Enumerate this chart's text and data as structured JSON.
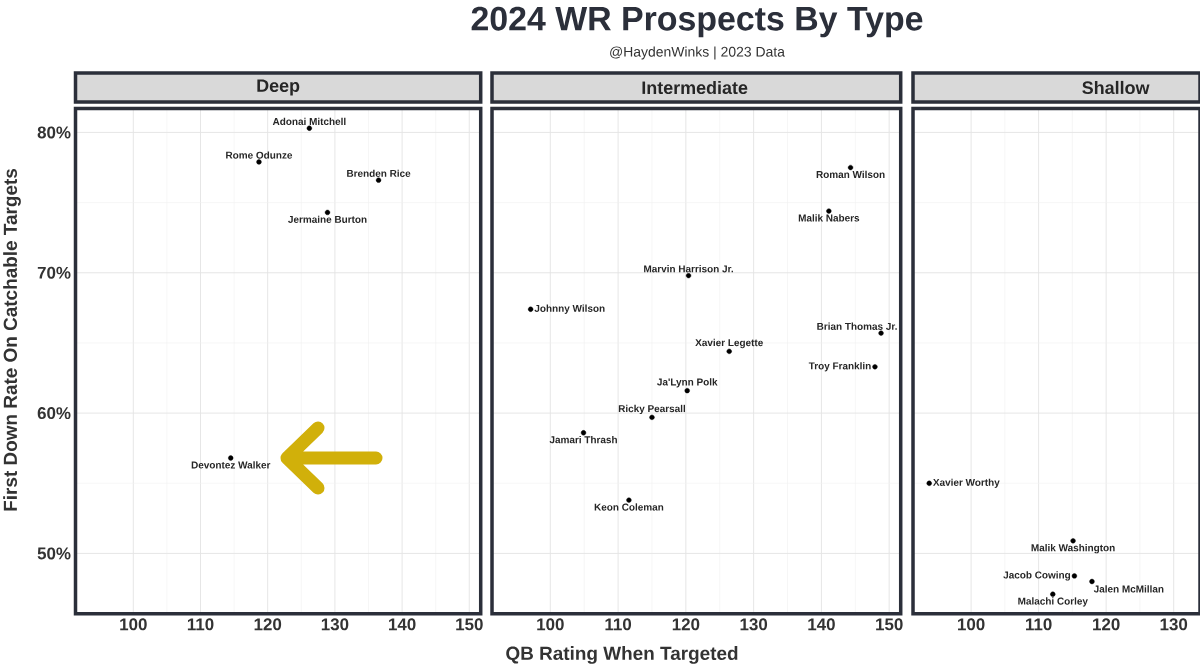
{
  "chart_data": [
    {
      "type": "scatter",
      "title": "Deep",
      "ylabel": "First Down Rate On Catchable Targets",
      "color": "#000000",
      "marker": "circle",
      "grid": true,
      "x": [
        126.2,
        118.7,
        136.5,
        128.9,
        114.5
      ],
      "values": [
        80.3,
        77.9,
        76.6,
        74.3,
        56.8
      ],
      "xlim": [
        91.4,
        151.7
      ],
      "ylim": [
        45.7,
        81.7
      ],
      "xticks": [
        100,
        110,
        120,
        130,
        140,
        150
      ],
      "yticks": [
        {
          "value": 50,
          "label": "50%"
        },
        {
          "value": 60,
          "label": "60%"
        },
        {
          "value": 70,
          "label": "70%"
        },
        {
          "value": 80,
          "label": "80%"
        }
      ],
      "annotations": [
        {
          "text": "Adonai Mitchell",
          "x": 126.2,
          "y": 80.3
        },
        {
          "text": "Rome Odunze",
          "x": 118.7,
          "y": 77.9
        },
        {
          "text": "Brenden Rice",
          "x": 136.5,
          "y": 76.6
        },
        {
          "text": "Jermaine Burton",
          "x": 128.9,
          "y": 74.3
        },
        {
          "text": "Devontez Walker",
          "x": 114.5,
          "y": 56.8
        },
        "2024 WR Prospects By Type",
        "@HaydenWinks | 2023 Data"
      ]
    },
    {
      "type": "scatter",
      "title": "Intermediate",
      "xlabel": "QB Rating When Targeted",
      "color": "#000000",
      "marker": "circle",
      "grid": true,
      "tick_labels": "x",
      "x": [
        144.3,
        141.1,
        120.4,
        97.1,
        148.8,
        126.4,
        147.9,
        120.2,
        115.0,
        104.9,
        111.6
      ],
      "values": [
        77.5,
        74.4,
        69.8,
        67.4,
        65.7,
        64.4,
        63.3,
        61.6,
        59.7,
        58.6,
        53.8
      ],
      "xlim": [
        91.4,
        151.7
      ],
      "ylim": [
        45.7,
        81.7
      ],
      "xticks": [
        100,
        110,
        120,
        130,
        140,
        150
      ],
      "yticks": [
        50,
        60,
        70,
        80
      ],
      "annotations": [
        {
          "text": "Roman Wilson",
          "x": 144.3,
          "y": 77.5
        },
        {
          "text": "Malik Nabers",
          "x": 141.1,
          "y": 74.4
        },
        {
          "text": "Marvin Harrison Jr.",
          "x": 120.4,
          "y": 69.8
        },
        {
          "text": "Johnny Wilson",
          "x": 97.1,
          "y": 67.4
        },
        {
          "text": "Brian Thomas Jr.",
          "x": 148.8,
          "y": 65.7
        },
        {
          "text": "Xavier Legette",
          "x": 126.4,
          "y": 64.4
        },
        {
          "text": "Troy Franklin",
          "x": 147.9,
          "y": 63.3
        },
        {
          "text": "Ja'Lynn Polk",
          "x": 120.2,
          "y": 61.6
        },
        {
          "text": "Ricky Pearsall",
          "x": 115.0,
          "y": 59.7
        },
        {
          "text": "Jamari Thrash",
          "x": 104.9,
          "y": 58.6
        },
        {
          "text": "Keon Coleman",
          "x": 111.6,
          "y": 53.8
        }
      ]
    },
    {
      "type": "scatter",
      "title": "Shallow",
      "color": "#000000",
      "marker": "circle",
      "grid": true,
      "tick_labels": "x",
      "x": [
        93.8,
        115.1,
        115.3,
        117.9,
        112.1
      ],
      "values": [
        55.0,
        50.9,
        48.4,
        48.0,
        47.1
      ],
      "xlim": [
        91.4,
        133.9
      ],
      "ylim": [
        45.7,
        81.7
      ],
      "xticks": [
        100,
        110,
        120,
        130
      ],
      "yticks": [
        50,
        60,
        70,
        80
      ],
      "annotations": [
        {
          "text": "Xavier Worthy",
          "x": 93.8,
          "y": 55.0
        },
        {
          "text": "Malik Washington",
          "x": 115.1,
          "y": 50.9
        },
        {
          "text": "Jacob Cowing",
          "x": 115.3,
          "y": 48.4
        },
        {
          "text": "Jalen McMillan",
          "x": 117.9,
          "y": 48.0
        },
        {
          "text": "Malachi Corley",
          "x": 112.1,
          "y": 47.1
        }
      ]
    }
  ]
}
